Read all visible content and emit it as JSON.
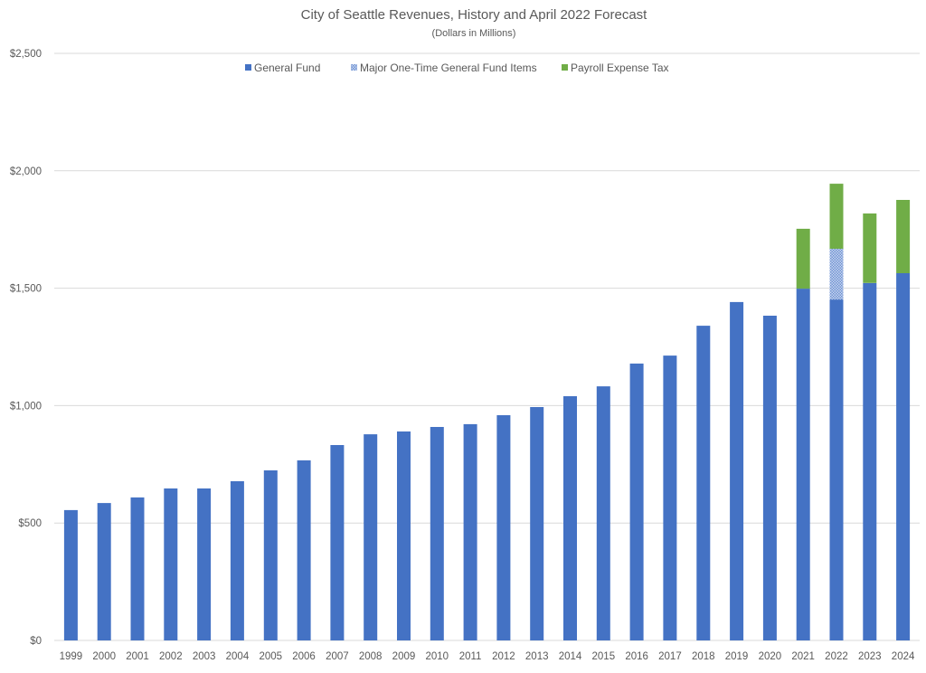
{
  "chart_data": {
    "type": "bar",
    "stacked": true,
    "title": "City of Seattle Revenues, History and April 2022 Forecast",
    "subtitle": "(Dollars in Millions)",
    "xlabel": "",
    "ylabel": "",
    "ylim": [
      0,
      2500
    ],
    "yticks": [
      0,
      500,
      1000,
      1500,
      2000,
      2500
    ],
    "ytick_labels": [
      "$0",
      "$500",
      "$1,000",
      "$1,500",
      "$2,000",
      "$2,500"
    ],
    "grid": true,
    "legend_position": "top-center",
    "categories": [
      "1999",
      "2000",
      "2001",
      "2002",
      "2003",
      "2004",
      "2005",
      "2006",
      "2007",
      "2008",
      "2009",
      "2010",
      "2011",
      "2012",
      "2013",
      "2014",
      "2015",
      "2016",
      "2017",
      "2018",
      "2019",
      "2020",
      "2021",
      "2022",
      "2023",
      "2024"
    ],
    "series": [
      {
        "name": "General Fund",
        "color": "#4472c4",
        "pattern": "solid",
        "values": [
          555,
          585,
          609,
          647,
          647,
          678,
          724,
          767,
          832,
          878,
          890,
          909,
          921,
          959,
          994,
          1040,
          1082,
          1179,
          1213,
          1340,
          1441,
          1383,
          1498,
          1452,
          1522,
          1564
        ]
      },
      {
        "name": "Major One-Time General Fund Items",
        "color": "#9fb6e3",
        "pattern": "checkered",
        "values": [
          0,
          0,
          0,
          0,
          0,
          0,
          0,
          0,
          0,
          0,
          0,
          0,
          0,
          0,
          0,
          0,
          0,
          0,
          0,
          0,
          0,
          0,
          0,
          216,
          0,
          0
        ]
      },
      {
        "name": "Payroll Expense Tax",
        "color": "#70ad47",
        "pattern": "solid",
        "values": [
          0,
          0,
          0,
          0,
          0,
          0,
          0,
          0,
          0,
          0,
          0,
          0,
          0,
          0,
          0,
          0,
          0,
          0,
          0,
          0,
          0,
          0,
          255,
          277,
          296,
          312
        ]
      }
    ]
  }
}
